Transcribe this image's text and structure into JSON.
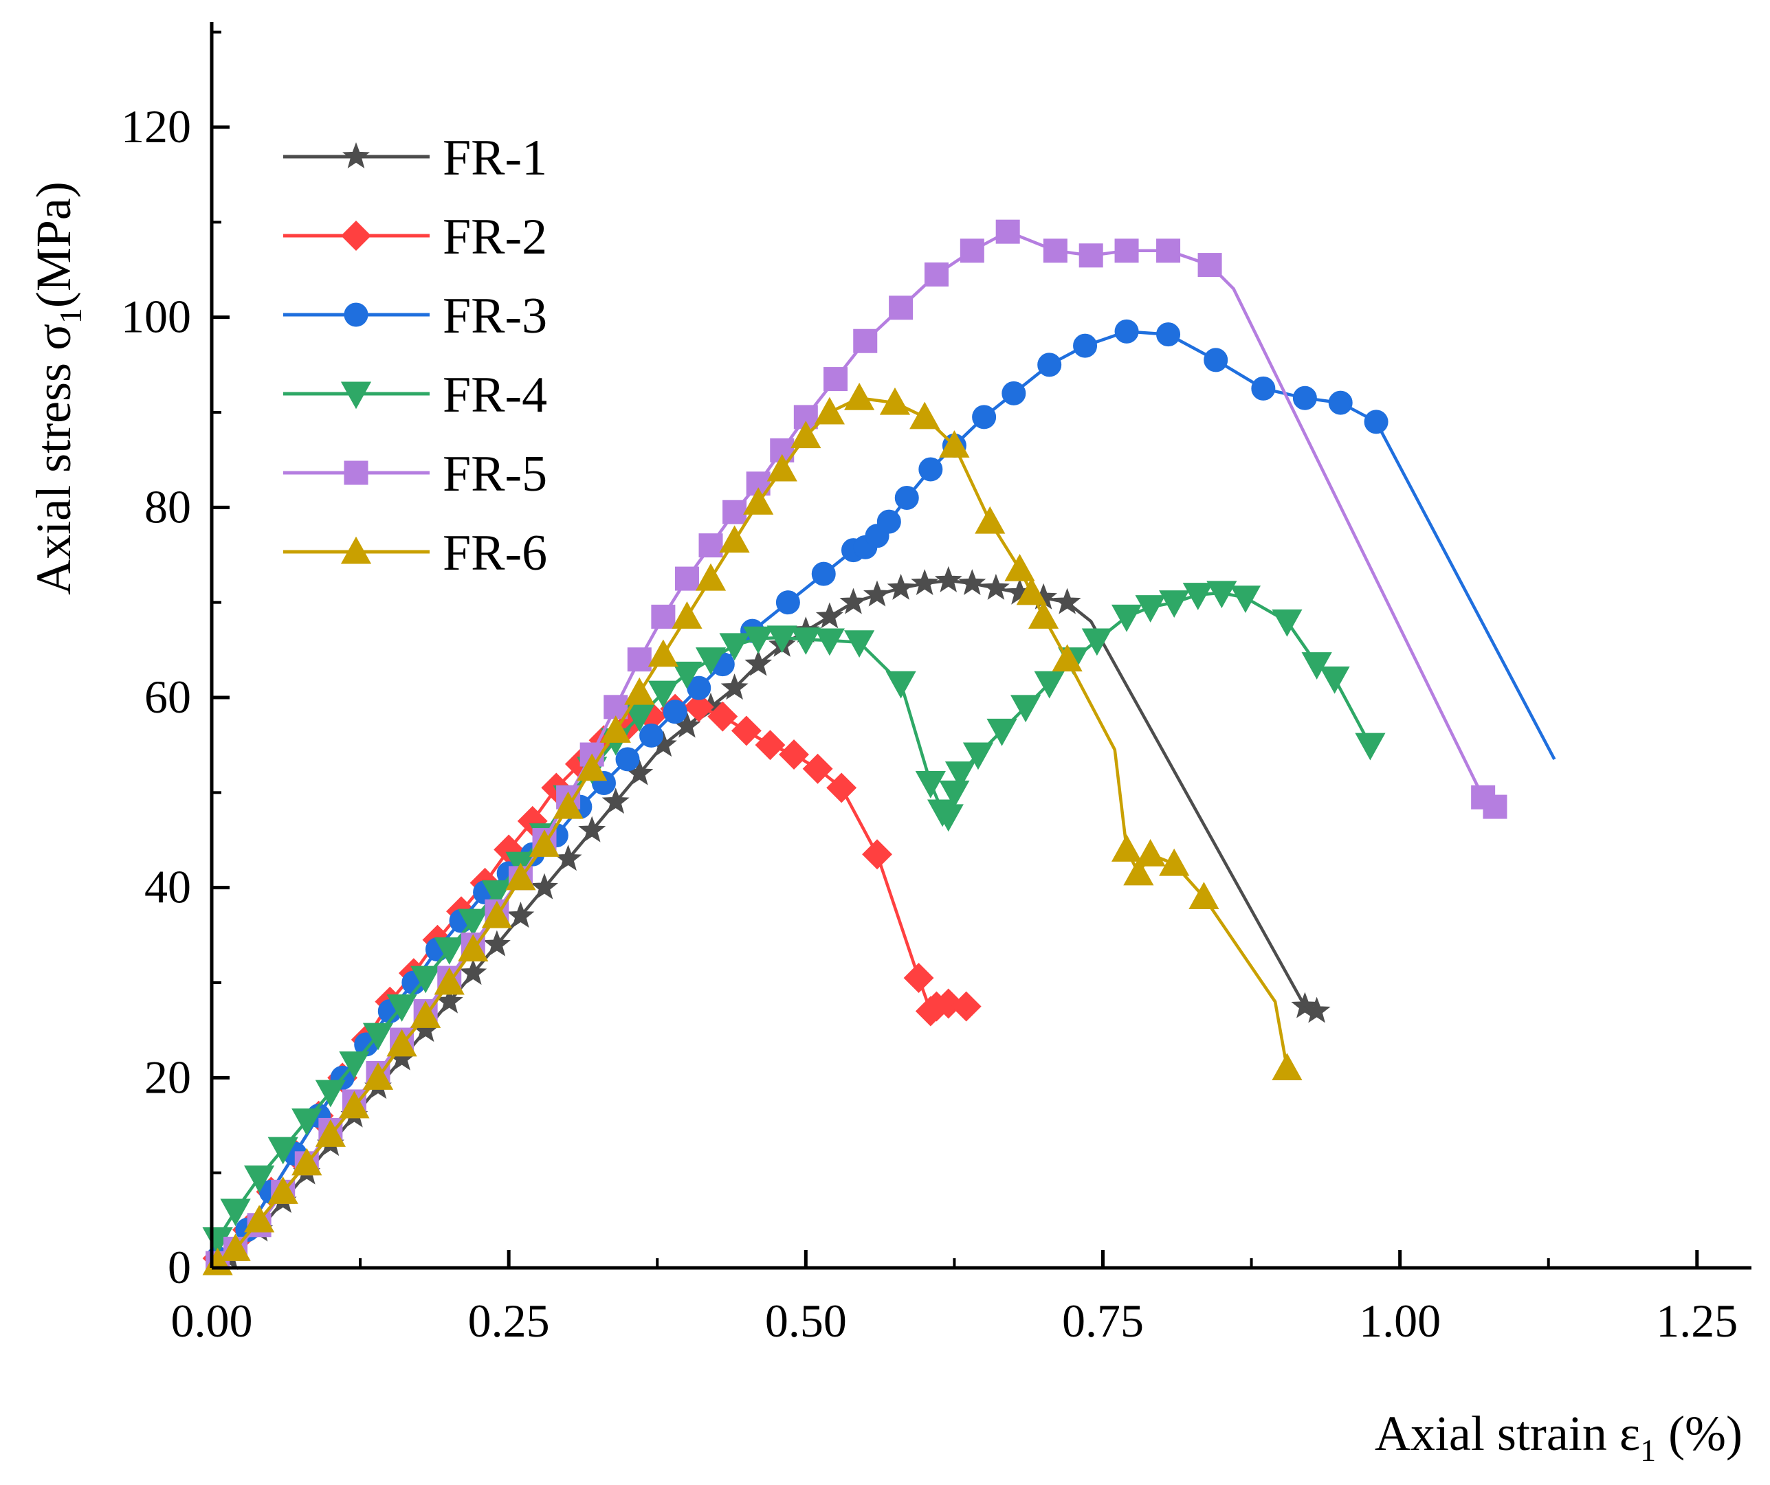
{
  "chart_data": {
    "type": "line",
    "title": "",
    "xlabel": "Axial strain ε",
    "xlabel_sub": "1",
    "xlabel_suffix": " (%)",
    "ylabel": "Axial stress  σ",
    "ylabel_sub": "1",
    "ylabel_suffix": "(MPa)",
    "xlim": [
      0,
      1.3
    ],
    "ylim": [
      0,
      130
    ],
    "xticks": [
      0.0,
      0.25,
      0.5,
      0.75,
      1.0,
      1.25
    ],
    "xtick_labels": [
      "0.00",
      "0.25",
      "0.50",
      "0.75",
      "1.00",
      "1.25"
    ],
    "yticks": [
      0,
      20,
      40,
      60,
      80,
      100,
      120
    ],
    "ytick_labels": [
      "0",
      "20",
      "40",
      "60",
      "80",
      "100",
      "120"
    ],
    "grid": false,
    "legend_position": "top-left",
    "series": [
      {
        "name": "FR-1",
        "color": "#4d4d4d",
        "marker": "star",
        "x": [
          0.015,
          0.04,
          0.06,
          0.08,
          0.1,
          0.12,
          0.14,
          0.16,
          0.18,
          0.2,
          0.22,
          0.24,
          0.26,
          0.28,
          0.3,
          0.32,
          0.34,
          0.36,
          0.38,
          0.4,
          0.42,
          0.44,
          0.46,
          0.48,
          0.5,
          0.52,
          0.54,
          0.56,
          0.58,
          0.6,
          0.62,
          0.64,
          0.66,
          0.68,
          0.7,
          0.72,
          0.74,
          0.92,
          0.93
        ],
        "y": [
          1,
          4,
          7,
          10,
          13,
          16,
          19,
          22,
          25,
          28,
          31,
          34,
          37,
          40,
          43,
          46,
          49,
          52,
          55,
          57,
          59,
          61,
          63.5,
          65.5,
          67,
          68.5,
          70,
          70.8,
          71.5,
          72,
          72.3,
          72,
          71.5,
          71,
          70.5,
          70,
          68,
          27.5,
          27
        ],
        "markers": [
          0,
          1,
          2,
          3,
          4,
          5,
          6,
          7,
          8,
          9,
          10,
          11,
          12,
          13,
          14,
          15,
          16,
          17,
          18,
          19,
          20,
          21,
          22,
          23,
          24,
          25,
          26,
          27,
          28,
          29,
          30,
          31,
          32,
          33,
          34,
          35,
          37,
          38
        ]
      },
      {
        "name": "FR-2",
        "color": "#ff4040",
        "marker": "diamond",
        "x": [
          0.005,
          0.03,
          0.05,
          0.07,
          0.09,
          0.11,
          0.13,
          0.15,
          0.17,
          0.19,
          0.21,
          0.23,
          0.25,
          0.27,
          0.29,
          0.31,
          0.33,
          0.35,
          0.37,
          0.39,
          0.41,
          0.43,
          0.45,
          0.47,
          0.49,
          0.51,
          0.53,
          0.56,
          0.595,
          0.605,
          0.61,
          0.62,
          0.635
        ],
        "y": [
          1,
          4,
          8,
          12,
          16,
          20,
          24,
          28,
          31,
          34.5,
          37.5,
          40.5,
          44,
          47,
          50.5,
          53,
          55.5,
          57,
          58,
          58.8,
          59,
          58,
          56.5,
          55,
          54,
          52.5,
          50.5,
          43.5,
          30.5,
          27,
          27.5,
          27.8,
          27.5
        ],
        "markers": [
          0,
          1,
          2,
          3,
          4,
          5,
          6,
          7,
          8,
          9,
          10,
          11,
          12,
          13,
          14,
          15,
          16,
          17,
          18,
          19,
          20,
          21,
          22,
          23,
          24,
          25,
          26,
          27,
          28,
          29,
          30,
          31,
          32
        ]
      },
      {
        "name": "FR-3",
        "color": "#1f6fde",
        "marker": "circle",
        "x": [
          0.005,
          0.03,
          0.05,
          0.07,
          0.09,
          0.11,
          0.13,
          0.15,
          0.17,
          0.19,
          0.21,
          0.23,
          0.25,
          0.27,
          0.29,
          0.31,
          0.33,
          0.35,
          0.37,
          0.39,
          0.41,
          0.43,
          0.455,
          0.485,
          0.515,
          0.54,
          0.55,
          0.56,
          0.57,
          0.585,
          0.605,
          0.625,
          0.65,
          0.675,
          0.705,
          0.735,
          0.77,
          0.805,
          0.845,
          0.885,
          0.92,
          0.95,
          0.98,
          1.13
        ],
        "y": [
          1,
          4,
          8,
          12,
          16,
          20,
          23.5,
          27,
          30,
          33.5,
          36.5,
          39.5,
          41.5,
          43.5,
          45.5,
          48.5,
          51,
          53.5,
          56,
          58.5,
          61,
          63.5,
          67,
          70,
          73,
          75.5,
          75.8,
          77,
          78.5,
          81,
          84,
          86.5,
          89.5,
          92,
          95,
          97,
          98.5,
          98.2,
          95.5,
          92.5,
          91.5,
          91,
          89,
          53.5
        ],
        "markers": [
          0,
          1,
          2,
          3,
          4,
          5,
          6,
          7,
          8,
          9,
          10,
          11,
          12,
          13,
          14,
          15,
          16,
          17,
          18,
          19,
          20,
          21,
          22,
          23,
          24,
          25,
          26,
          27,
          28,
          29,
          30,
          31,
          32,
          33,
          34,
          35,
          36,
          37,
          38,
          39,
          40,
          41,
          42
        ]
      },
      {
        "name": "FR-4",
        "color": "#2ea866",
        "marker": "triangle-down",
        "x": [
          0.005,
          0.02,
          0.04,
          0.06,
          0.08,
          0.1,
          0.12,
          0.14,
          0.16,
          0.18,
          0.2,
          0.22,
          0.24,
          0.26,
          0.28,
          0.3,
          0.32,
          0.34,
          0.36,
          0.38,
          0.4,
          0.42,
          0.44,
          0.46,
          0.48,
          0.5,
          0.52,
          0.545,
          0.58,
          0.605,
          0.615,
          0.62,
          0.625,
          0.63,
          0.645,
          0.665,
          0.685,
          0.705,
          0.725,
          0.745,
          0.77,
          0.79,
          0.81,
          0.83,
          0.85,
          0.87,
          0.905,
          0.93,
          0.945,
          0.975
        ],
        "y": [
          3,
          6,
          9.5,
          12.5,
          15.5,
          18.5,
          21.5,
          24.5,
          27.5,
          30.5,
          33.5,
          36.5,
          39.5,
          42.5,
          45.5,
          49.5,
          52.5,
          55.5,
          58,
          60.5,
          62.5,
          64,
          65.5,
          66.2,
          66.3,
          66.1,
          66,
          65.8,
          61.5,
          51,
          48,
          47.5,
          50,
          52,
          54,
          56.5,
          59,
          61.5,
          64,
          66,
          68.5,
          69.5,
          70,
          70.8,
          71,
          70.5,
          68,
          63.5,
          62,
          55
        ],
        "markers": [
          0,
          1,
          2,
          3,
          4,
          5,
          6,
          7,
          8,
          9,
          10,
          11,
          12,
          13,
          14,
          15,
          16,
          17,
          18,
          19,
          20,
          21,
          22,
          23,
          24,
          25,
          26,
          27,
          28,
          29,
          30,
          31,
          32,
          33,
          34,
          35,
          36,
          37,
          38,
          39,
          40,
          41,
          42,
          43,
          44,
          45,
          46,
          47,
          48,
          49
        ]
      },
      {
        "name": "FR-5",
        "color": "#b57ee0",
        "marker": "square",
        "x": [
          0.005,
          0.02,
          0.04,
          0.06,
          0.08,
          0.1,
          0.12,
          0.14,
          0.16,
          0.18,
          0.2,
          0.22,
          0.24,
          0.26,
          0.28,
          0.3,
          0.32,
          0.34,
          0.36,
          0.38,
          0.4,
          0.42,
          0.44,
          0.46,
          0.48,
          0.5,
          0.525,
          0.55,
          0.58,
          0.61,
          0.64,
          0.67,
          0.71,
          0.74,
          0.77,
          0.805,
          0.84,
          0.86,
          1.07,
          1.08
        ],
        "y": [
          0.5,
          2,
          4.5,
          8,
          11,
          14.5,
          17.5,
          20.5,
          24,
          27,
          30.5,
          34,
          37.5,
          41,
          45,
          49.5,
          54,
          59,
          64,
          68.5,
          72.5,
          76,
          79.5,
          82.5,
          86,
          89.5,
          93.5,
          97.5,
          101,
          104.5,
          107,
          109,
          107,
          106.5,
          107,
          107,
          105.5,
          103,
          49.5,
          48.5
        ],
        "markers": [
          0,
          1,
          2,
          3,
          4,
          5,
          6,
          7,
          8,
          9,
          10,
          11,
          12,
          13,
          14,
          15,
          16,
          17,
          18,
          19,
          20,
          21,
          22,
          23,
          24,
          25,
          26,
          27,
          28,
          29,
          30,
          31,
          32,
          33,
          34,
          35,
          36,
          38,
          39
        ]
      },
      {
        "name": "FR-6",
        "color": "#c9a000",
        "marker": "triangle-up",
        "x": [
          0.005,
          0.02,
          0.04,
          0.06,
          0.08,
          0.1,
          0.12,
          0.14,
          0.16,
          0.18,
          0.2,
          0.22,
          0.24,
          0.26,
          0.28,
          0.3,
          0.32,
          0.34,
          0.36,
          0.38,
          0.4,
          0.42,
          0.44,
          0.46,
          0.48,
          0.5,
          0.52,
          0.545,
          0.575,
          0.6,
          0.625,
          0.655,
          0.68,
          0.69,
          0.7,
          0.72,
          0.76,
          0.77,
          0.78,
          0.79,
          0.81,
          0.835,
          0.895,
          0.905
        ],
        "y": [
          0.5,
          2,
          5,
          8,
          11,
          14,
          17,
          20,
          23.5,
          26.5,
          30,
          33.5,
          37,
          41,
          44.5,
          48.5,
          52.5,
          56.5,
          60.5,
          64.5,
          68.5,
          72.5,
          76.5,
          80.5,
          84,
          87.5,
          90,
          91.5,
          91,
          89.5,
          86.5,
          78.5,
          73.5,
          71,
          68.5,
          64,
          54.5,
          44,
          41.5,
          43.5,
          42.5,
          39,
          28,
          21
        ],
        "markers": [
          0,
          1,
          2,
          3,
          4,
          5,
          6,
          7,
          8,
          9,
          10,
          11,
          12,
          13,
          14,
          15,
          16,
          17,
          18,
          19,
          20,
          21,
          22,
          23,
          24,
          25,
          26,
          27,
          28,
          29,
          30,
          31,
          32,
          33,
          34,
          35,
          37,
          38,
          39,
          40,
          41,
          43
        ]
      }
    ]
  }
}
